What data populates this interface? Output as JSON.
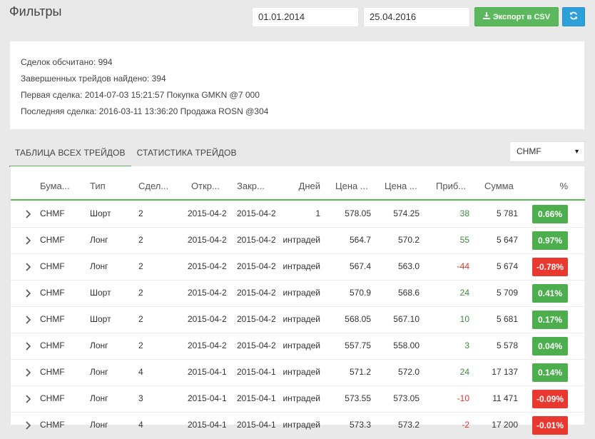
{
  "page": {
    "title": "Фильтры"
  },
  "filters": {
    "date_from": "01.01.2014",
    "date_to": "25.04.2016",
    "export_label": "Экспорт в CSV",
    "colors": {
      "export": "#5cb85c",
      "refresh": "#2d9fd9"
    }
  },
  "summary": {
    "lines": [
      "Сделок обсчитано: 994",
      "Завершенных трейдов найдено: 394",
      "Первая сделка: 2014-07-03 15:21:57 Покупка GMKN @7 000",
      "Последняя сделка: 2016-03-11 13:36:20 Продажа ROSN @304"
    ]
  },
  "tabs": [
    {
      "label": "Таблица всех трейдов",
      "active": true
    },
    {
      "label": "Статистика трейдов",
      "active": false
    }
  ],
  "ticker_select": {
    "value": "CHMF"
  },
  "table": {
    "headers": [
      "Бума...",
      "Тип",
      "Сдел...",
      "Откр...",
      "Закр...",
      "Дней",
      "Цена ...",
      "Цена ...",
      "Приб...",
      "Сумма",
      "%"
    ],
    "rows": [
      {
        "ticker": "CHMF",
        "type": "Шорт",
        "deals": "2",
        "open": "2015-04-2",
        "close": "2015-04-2",
        "days": "1",
        "price_open": "578.05",
        "price_close": "574.25",
        "profit": "38",
        "sum": "5 781",
        "pct": "0.66%",
        "sign": "pos"
      },
      {
        "ticker": "CHMF",
        "type": "Лонг",
        "deals": "2",
        "open": "2015-04-2",
        "close": "2015-04-2",
        "days": "интрадей",
        "price_open": "564.7",
        "price_close": "570.2",
        "profit": "55",
        "sum": "5 647",
        "pct": "0.97%",
        "sign": "pos"
      },
      {
        "ticker": "CHMF",
        "type": "Лонг",
        "deals": "2",
        "open": "2015-04-2",
        "close": "2015-04-2",
        "days": "интрадей",
        "price_open": "567.4",
        "price_close": "563.0",
        "profit": "-44",
        "sum": "5 674",
        "pct": "-0.78%",
        "sign": "neg"
      },
      {
        "ticker": "CHMF",
        "type": "Шорт",
        "deals": "2",
        "open": "2015-04-2",
        "close": "2015-04-2",
        "days": "интрадей",
        "price_open": "570.9",
        "price_close": "568.6",
        "profit": "24",
        "sum": "5 709",
        "pct": "0.41%",
        "sign": "pos"
      },
      {
        "ticker": "CHMF",
        "type": "Шорт",
        "deals": "2",
        "open": "2015-04-2",
        "close": "2015-04-2",
        "days": "интрадей",
        "price_open": "568.05",
        "price_close": "567.10",
        "profit": "10",
        "sum": "5 681",
        "pct": "0.17%",
        "sign": "pos"
      },
      {
        "ticker": "CHMF",
        "type": "Лонг",
        "deals": "2",
        "open": "2015-04-2",
        "close": "2015-04-2",
        "days": "интрадей",
        "price_open": "557.75",
        "price_close": "558.00",
        "profit": "3",
        "sum": "5 578",
        "pct": "0.04%",
        "sign": "pos"
      },
      {
        "ticker": "CHMF",
        "type": "Лонг",
        "deals": "4",
        "open": "2015-04-1",
        "close": "2015-04-1",
        "days": "интрадей",
        "price_open": "571.2",
        "price_close": "572.0",
        "profit": "24",
        "sum": "17 137",
        "pct": "0.14%",
        "sign": "pos"
      },
      {
        "ticker": "CHMF",
        "type": "Лонг",
        "deals": "3",
        "open": "2015-04-1",
        "close": "2015-04-1",
        "days": "интрадей",
        "price_open": "573.55",
        "price_close": "573.05",
        "profit": "-10",
        "sum": "11 471",
        "pct": "-0.09%",
        "sign": "neg"
      },
      {
        "ticker": "CHMF",
        "type": "Лонг",
        "deals": "4",
        "open": "2015-04-1",
        "close": "2015-04-1",
        "days": "интрадей",
        "price_open": "573.3",
        "price_close": "573.2",
        "profit": "-2",
        "sum": "17 200",
        "pct": "-0.01%",
        "sign": "neg"
      }
    ]
  }
}
